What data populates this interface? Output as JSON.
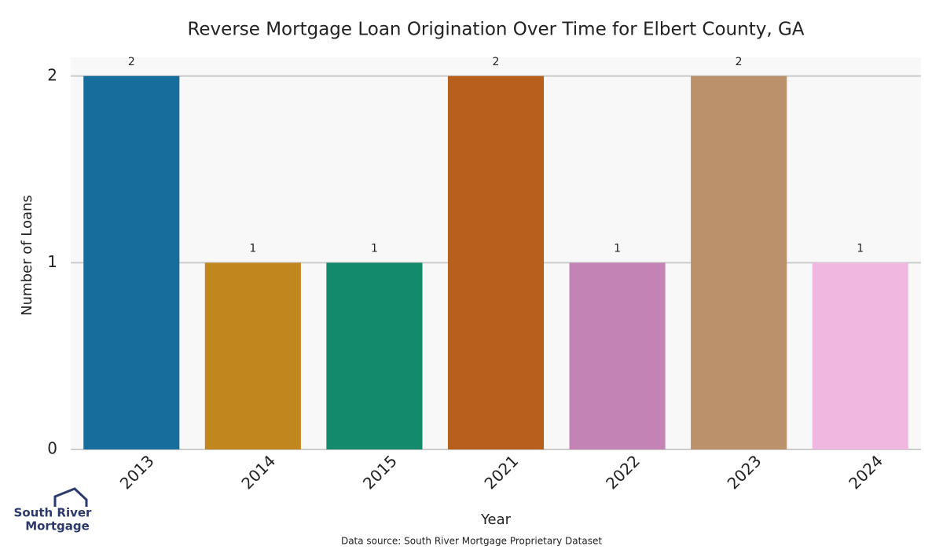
{
  "chart_data": {
    "type": "bar",
    "title": "Reverse Mortgage Loan Origination Over Time for Elbert County, GA",
    "x_label": "Year",
    "y_label": "Number of Loans",
    "categories": [
      "2013",
      "2014",
      "2015",
      "2021",
      "2022",
      "2023",
      "2024"
    ],
    "values": [
      2,
      1,
      1,
      2,
      1,
      2,
      1
    ],
    "colors": [
      "#176d9c",
      "#c2861f",
      "#138a69",
      "#b75f1d",
      "#c384b5",
      "#bb916c",
      "#f0b8e0"
    ],
    "ylim": [
      0,
      2.1
    ],
    "yticks": [
      0,
      1,
      2
    ],
    "grid": true,
    "source": "Data source: South River Mortgage Proprietary Dataset",
    "logo_text": [
      "South River",
      "Mortgage"
    ]
  }
}
